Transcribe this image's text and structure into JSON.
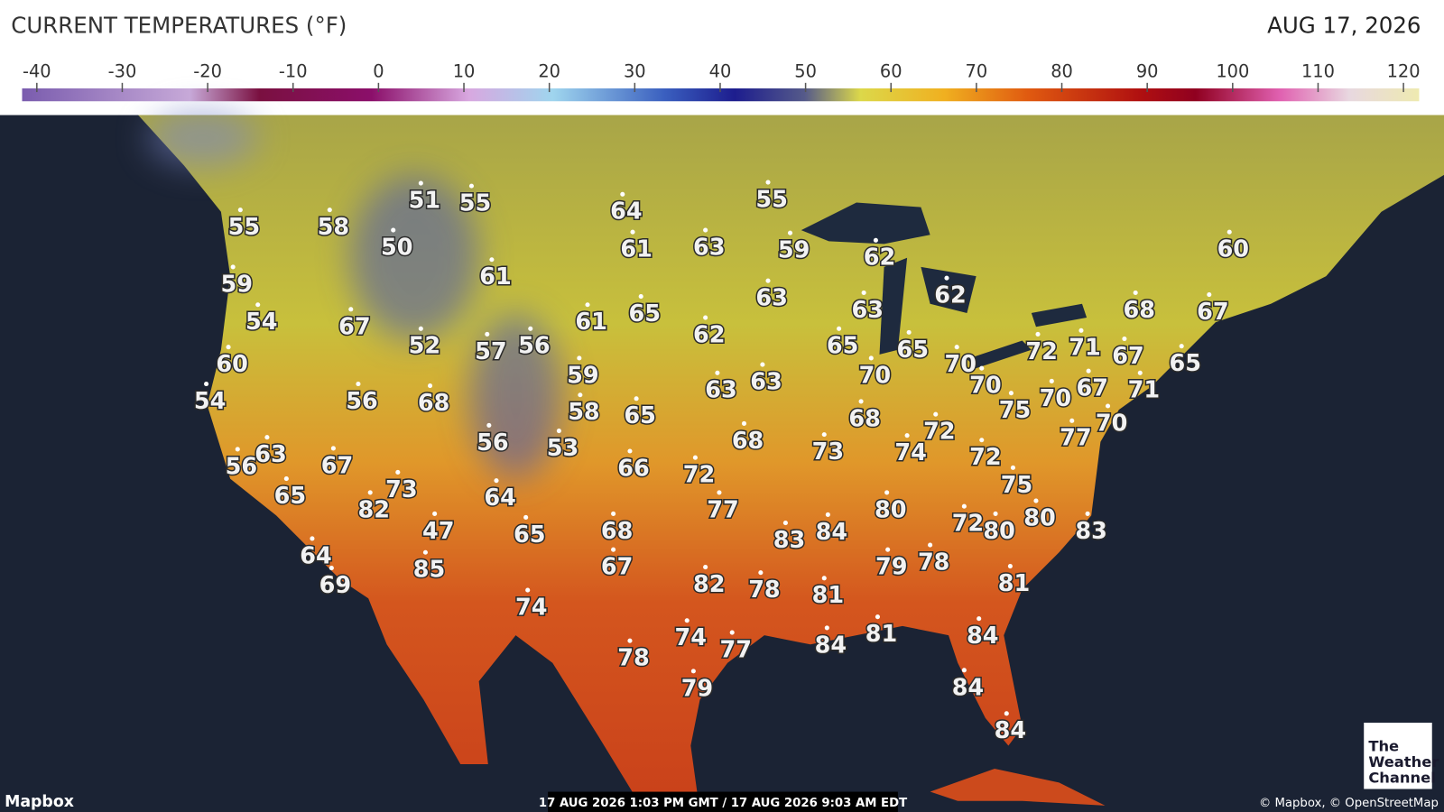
{
  "header": {
    "title": "CURRENT TEMPERATURES (°F)",
    "date": "AUG 17, 2026"
  },
  "scale": {
    "range": [
      -40,
      120
    ],
    "ticks": [
      -40,
      -30,
      -20,
      -10,
      0,
      10,
      20,
      30,
      40,
      50,
      60,
      70,
      80,
      90,
      100,
      110,
      120
    ]
  },
  "stations": [
    55,
    58,
    51,
    55,
    50,
    64,
    55,
    61,
    63,
    59,
    62,
    60,
    59,
    61,
    63,
    63,
    62,
    68,
    67,
    54,
    67,
    61,
    65,
    62,
    52,
    57,
    56,
    65,
    65,
    72,
    71,
    67,
    65,
    60,
    70,
    59,
    70,
    54,
    56,
    68,
    63,
    63,
    70,
    67,
    71,
    70,
    58,
    65,
    68,
    75,
    72,
    70,
    77,
    56,
    53,
    68,
    73,
    74,
    72,
    56,
    63,
    67,
    66,
    72,
    75,
    65,
    73,
    64,
    82,
    77,
    80,
    80,
    72,
    80,
    83,
    47,
    65,
    68,
    83,
    84,
    64,
    85,
    67,
    82,
    78,
    79,
    78,
    81,
    69,
    81,
    74,
    74,
    77,
    78,
    84,
    81,
    84,
    79,
    84,
    84
  ],
  "footer": {
    "brand": "Mapbox",
    "timestamp": "17 AUG 2026 1:03 PM GMT / 17 AUG 2026 9:03 AM EDT",
    "attribution": "© Mapbox, © OpenStreetMap",
    "logo": [
      "The",
      "Weather",
      "Channel"
    ]
  }
}
